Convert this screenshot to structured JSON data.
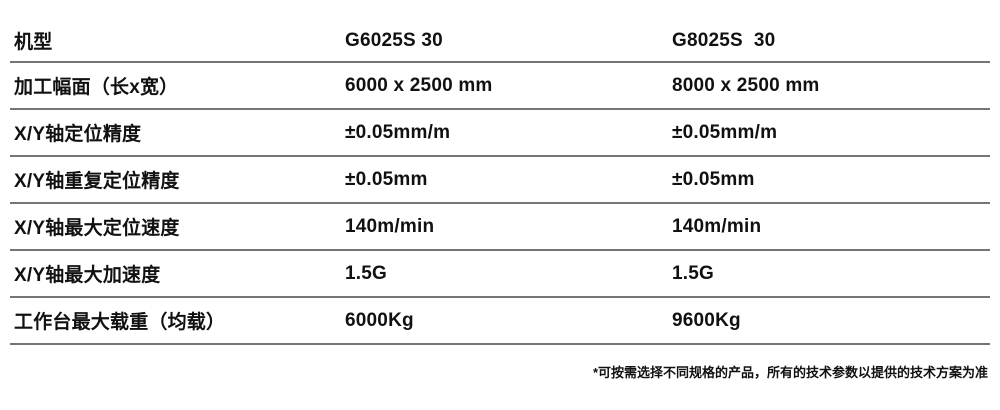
{
  "table": {
    "rows": [
      {
        "label": "机型",
        "col1": "G6025S 30",
        "col2": "G8025S  30"
      },
      {
        "label": "加工幅面（长x宽）",
        "col1": "6000 x 2500 mm",
        "col2": "8000 x 2500 mm"
      },
      {
        "label": "X/Y轴定位精度",
        "col1": "±0.05mm/m",
        "col2": "±0.05mm/m"
      },
      {
        "label": "X/Y轴重复定位精度",
        "col1": "±0.05mm",
        "col2": "±0.05mm"
      },
      {
        "label": "X/Y轴最大定位速度",
        "col1": "140m/min",
        "col2": "140m/min"
      },
      {
        "label": "X/Y轴最大加速度",
        "col1": "1.5G",
        "col2": "1.5G"
      },
      {
        "label": "工作台最大载重（均载）",
        "col1": "6000Kg",
        "col2": "9600Kg"
      }
    ]
  },
  "footnote": "*可按需选择不同规格的产品，所有的技术参数以提供的技术方案为准",
  "colors": {
    "text": "#111111",
    "divider": "#757575",
    "background": "#ffffff"
  }
}
